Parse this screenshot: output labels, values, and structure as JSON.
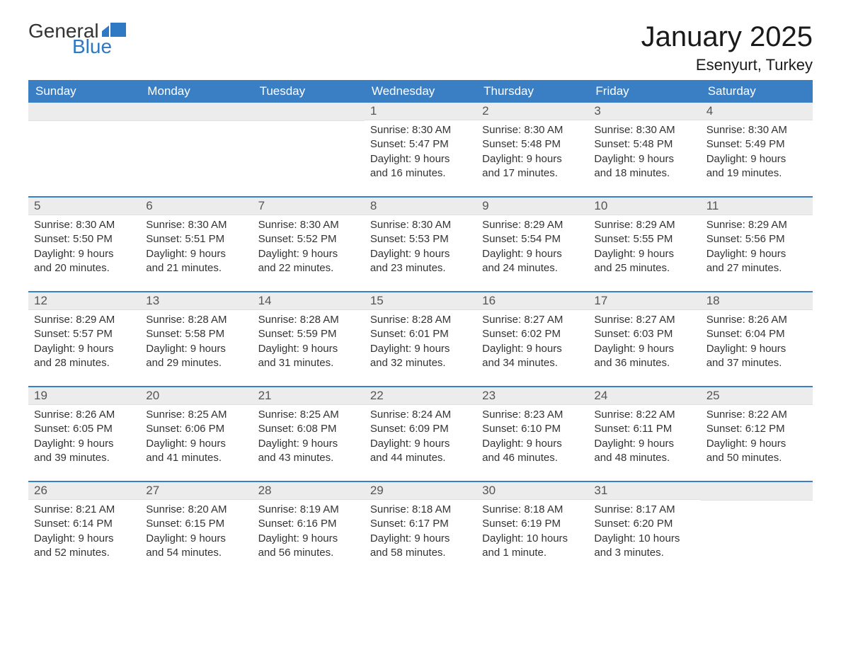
{
  "logo": {
    "word1": "General",
    "word2": "Blue"
  },
  "title": "January 2025",
  "location": "Esenyurt, Turkey",
  "colors": {
    "header_bg": "#3a7ec4",
    "header_text": "#ffffff",
    "week_divider": "#3a7ec4",
    "daynum_bg": "#ececec",
    "daynum_text": "#555555",
    "body_text": "#333333",
    "logo_blue": "#2f78c4"
  },
  "day_names": [
    "Sunday",
    "Monday",
    "Tuesday",
    "Wednesday",
    "Thursday",
    "Friday",
    "Saturday"
  ],
  "weeks": [
    [
      null,
      null,
      null,
      {
        "n": "1",
        "sunrise": "Sunrise: 8:30 AM",
        "sunset": "Sunset: 5:47 PM",
        "daylight1": "Daylight: 9 hours",
        "daylight2": "and 16 minutes."
      },
      {
        "n": "2",
        "sunrise": "Sunrise: 8:30 AM",
        "sunset": "Sunset: 5:48 PM",
        "daylight1": "Daylight: 9 hours",
        "daylight2": "and 17 minutes."
      },
      {
        "n": "3",
        "sunrise": "Sunrise: 8:30 AM",
        "sunset": "Sunset: 5:48 PM",
        "daylight1": "Daylight: 9 hours",
        "daylight2": "and 18 minutes."
      },
      {
        "n": "4",
        "sunrise": "Sunrise: 8:30 AM",
        "sunset": "Sunset: 5:49 PM",
        "daylight1": "Daylight: 9 hours",
        "daylight2": "and 19 minutes."
      }
    ],
    [
      {
        "n": "5",
        "sunrise": "Sunrise: 8:30 AM",
        "sunset": "Sunset: 5:50 PM",
        "daylight1": "Daylight: 9 hours",
        "daylight2": "and 20 minutes."
      },
      {
        "n": "6",
        "sunrise": "Sunrise: 8:30 AM",
        "sunset": "Sunset: 5:51 PM",
        "daylight1": "Daylight: 9 hours",
        "daylight2": "and 21 minutes."
      },
      {
        "n": "7",
        "sunrise": "Sunrise: 8:30 AM",
        "sunset": "Sunset: 5:52 PM",
        "daylight1": "Daylight: 9 hours",
        "daylight2": "and 22 minutes."
      },
      {
        "n": "8",
        "sunrise": "Sunrise: 8:30 AM",
        "sunset": "Sunset: 5:53 PM",
        "daylight1": "Daylight: 9 hours",
        "daylight2": "and 23 minutes."
      },
      {
        "n": "9",
        "sunrise": "Sunrise: 8:29 AM",
        "sunset": "Sunset: 5:54 PM",
        "daylight1": "Daylight: 9 hours",
        "daylight2": "and 24 minutes."
      },
      {
        "n": "10",
        "sunrise": "Sunrise: 8:29 AM",
        "sunset": "Sunset: 5:55 PM",
        "daylight1": "Daylight: 9 hours",
        "daylight2": "and 25 minutes."
      },
      {
        "n": "11",
        "sunrise": "Sunrise: 8:29 AM",
        "sunset": "Sunset: 5:56 PM",
        "daylight1": "Daylight: 9 hours",
        "daylight2": "and 27 minutes."
      }
    ],
    [
      {
        "n": "12",
        "sunrise": "Sunrise: 8:29 AM",
        "sunset": "Sunset: 5:57 PM",
        "daylight1": "Daylight: 9 hours",
        "daylight2": "and 28 minutes."
      },
      {
        "n": "13",
        "sunrise": "Sunrise: 8:28 AM",
        "sunset": "Sunset: 5:58 PM",
        "daylight1": "Daylight: 9 hours",
        "daylight2": "and 29 minutes."
      },
      {
        "n": "14",
        "sunrise": "Sunrise: 8:28 AM",
        "sunset": "Sunset: 5:59 PM",
        "daylight1": "Daylight: 9 hours",
        "daylight2": "and 31 minutes."
      },
      {
        "n": "15",
        "sunrise": "Sunrise: 8:28 AM",
        "sunset": "Sunset: 6:01 PM",
        "daylight1": "Daylight: 9 hours",
        "daylight2": "and 32 minutes."
      },
      {
        "n": "16",
        "sunrise": "Sunrise: 8:27 AM",
        "sunset": "Sunset: 6:02 PM",
        "daylight1": "Daylight: 9 hours",
        "daylight2": "and 34 minutes."
      },
      {
        "n": "17",
        "sunrise": "Sunrise: 8:27 AM",
        "sunset": "Sunset: 6:03 PM",
        "daylight1": "Daylight: 9 hours",
        "daylight2": "and 36 minutes."
      },
      {
        "n": "18",
        "sunrise": "Sunrise: 8:26 AM",
        "sunset": "Sunset: 6:04 PM",
        "daylight1": "Daylight: 9 hours",
        "daylight2": "and 37 minutes."
      }
    ],
    [
      {
        "n": "19",
        "sunrise": "Sunrise: 8:26 AM",
        "sunset": "Sunset: 6:05 PM",
        "daylight1": "Daylight: 9 hours",
        "daylight2": "and 39 minutes."
      },
      {
        "n": "20",
        "sunrise": "Sunrise: 8:25 AM",
        "sunset": "Sunset: 6:06 PM",
        "daylight1": "Daylight: 9 hours",
        "daylight2": "and 41 minutes."
      },
      {
        "n": "21",
        "sunrise": "Sunrise: 8:25 AM",
        "sunset": "Sunset: 6:08 PM",
        "daylight1": "Daylight: 9 hours",
        "daylight2": "and 43 minutes."
      },
      {
        "n": "22",
        "sunrise": "Sunrise: 8:24 AM",
        "sunset": "Sunset: 6:09 PM",
        "daylight1": "Daylight: 9 hours",
        "daylight2": "and 44 minutes."
      },
      {
        "n": "23",
        "sunrise": "Sunrise: 8:23 AM",
        "sunset": "Sunset: 6:10 PM",
        "daylight1": "Daylight: 9 hours",
        "daylight2": "and 46 minutes."
      },
      {
        "n": "24",
        "sunrise": "Sunrise: 8:22 AM",
        "sunset": "Sunset: 6:11 PM",
        "daylight1": "Daylight: 9 hours",
        "daylight2": "and 48 minutes."
      },
      {
        "n": "25",
        "sunrise": "Sunrise: 8:22 AM",
        "sunset": "Sunset: 6:12 PM",
        "daylight1": "Daylight: 9 hours",
        "daylight2": "and 50 minutes."
      }
    ],
    [
      {
        "n": "26",
        "sunrise": "Sunrise: 8:21 AM",
        "sunset": "Sunset: 6:14 PM",
        "daylight1": "Daylight: 9 hours",
        "daylight2": "and 52 minutes."
      },
      {
        "n": "27",
        "sunrise": "Sunrise: 8:20 AM",
        "sunset": "Sunset: 6:15 PM",
        "daylight1": "Daylight: 9 hours",
        "daylight2": "and 54 minutes."
      },
      {
        "n": "28",
        "sunrise": "Sunrise: 8:19 AM",
        "sunset": "Sunset: 6:16 PM",
        "daylight1": "Daylight: 9 hours",
        "daylight2": "and 56 minutes."
      },
      {
        "n": "29",
        "sunrise": "Sunrise: 8:18 AM",
        "sunset": "Sunset: 6:17 PM",
        "daylight1": "Daylight: 9 hours",
        "daylight2": "and 58 minutes."
      },
      {
        "n": "30",
        "sunrise": "Sunrise: 8:18 AM",
        "sunset": "Sunset: 6:19 PM",
        "daylight1": "Daylight: 10 hours",
        "daylight2": "and 1 minute."
      },
      {
        "n": "31",
        "sunrise": "Sunrise: 8:17 AM",
        "sunset": "Sunset: 6:20 PM",
        "daylight1": "Daylight: 10 hours",
        "daylight2": "and 3 minutes."
      },
      null
    ]
  ]
}
